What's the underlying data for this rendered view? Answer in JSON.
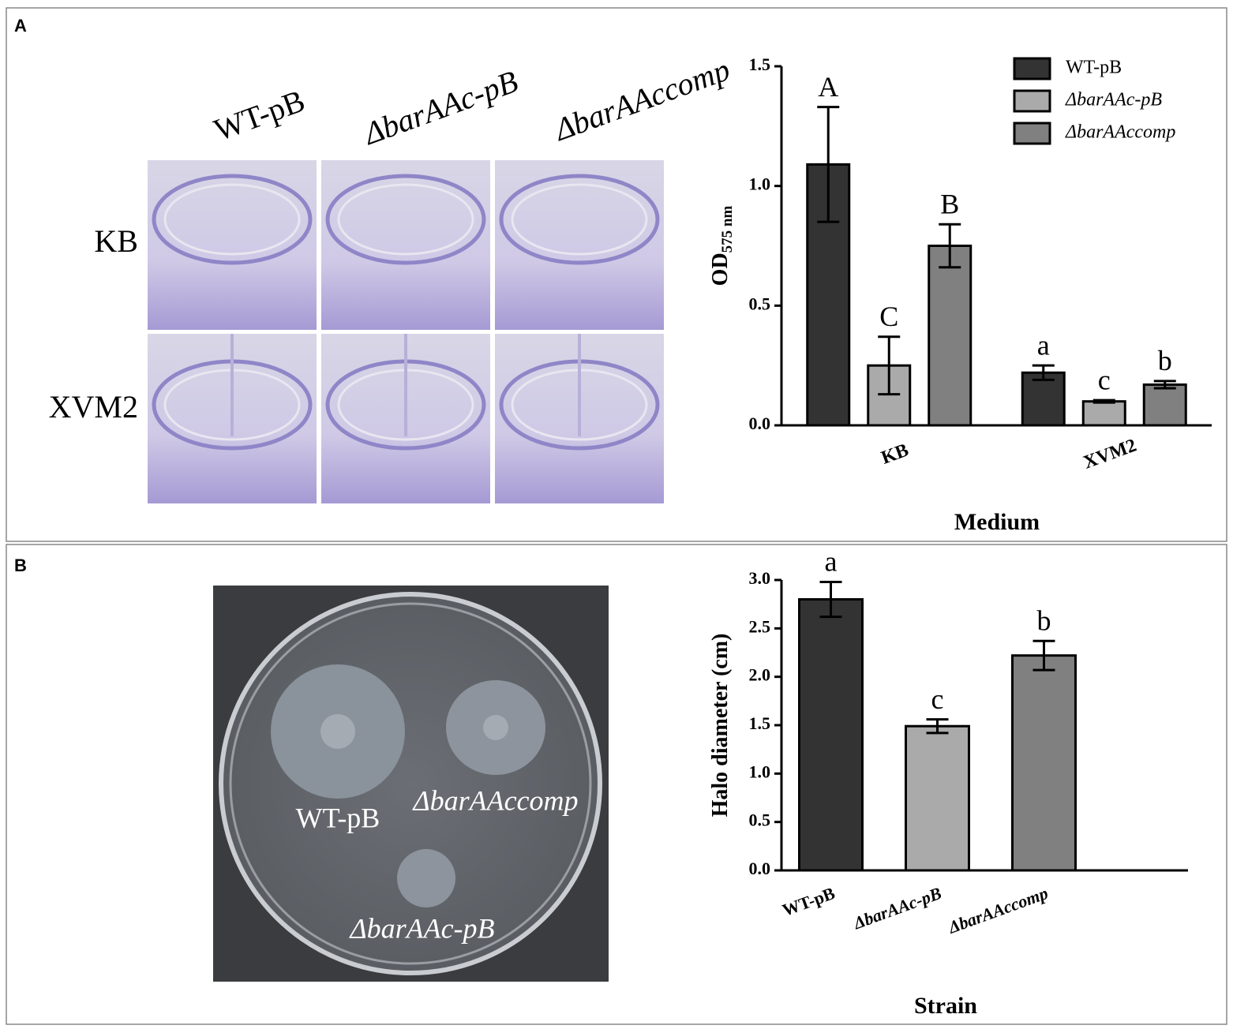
{
  "panels": [
    "A",
    "B"
  ],
  "photo_a": {
    "columns": [
      "WT-pB",
      "ΔbarAAc-pB",
      "ΔbarAAccomp"
    ],
    "rows": [
      "KB",
      "XVM2"
    ]
  },
  "photo_b": {
    "labels": [
      "WT-pB",
      "ΔbarAAccomp",
      "ΔbarAAc-pB"
    ]
  },
  "chart_data": [
    {
      "type": "bar",
      "y_label": "OD",
      "y_label_sub": "575 nm",
      "x_label": "Medium",
      "categories": [
        "KB",
        "XVM2"
      ],
      "ylim": [
        0,
        1.5
      ],
      "yticks": [
        {
          "value": 0,
          "label": "0.0"
        },
        {
          "value": 0.5,
          "label": "0.5"
        },
        {
          "value": 1,
          "label": "1.0"
        },
        {
          "value": 1.5,
          "label": "1.5"
        }
      ],
      "legend": "top-right",
      "series": [
        {
          "name": "WT-pB",
          "color": "#333333",
          "values": [
            1.09,
            0.22
          ],
          "errors": [
            0.24,
            0.03
          ],
          "letters": [
            "A",
            "a"
          ]
        },
        {
          "name": "ΔbarAAc-pB",
          "color": "#aaaaaa",
          "values": [
            0.25,
            0.1
          ],
          "errors": [
            0.12,
            0.005
          ],
          "letters": [
            "C",
            "c"
          ]
        },
        {
          "name": "ΔbarAAccomp",
          "color": "#808080",
          "values": [
            0.75,
            0.17
          ],
          "errors": [
            0.09,
            0.015
          ],
          "letters": [
            "B",
            "b"
          ]
        }
      ]
    },
    {
      "type": "bar",
      "y_label": "Halo diameter (cm)",
      "x_label": "Strain",
      "categories": [
        "WT-pB",
        "ΔbarAAc-pB",
        "ΔbarAAccomp"
      ],
      "ylim": [
        0,
        3
      ],
      "yticks": [
        {
          "value": 0,
          "label": "0.0"
        },
        {
          "value": 0.5,
          "label": "0.5"
        },
        {
          "value": 1,
          "label": "1.0"
        },
        {
          "value": 1.5,
          "label": "1.5"
        },
        {
          "value": 2,
          "label": "2.0"
        },
        {
          "value": 2.5,
          "label": "2.5"
        },
        {
          "value": 3,
          "label": "3.0"
        }
      ],
      "values": [
        2.8,
        1.49,
        2.22
      ],
      "errors": [
        0.18,
        0.07,
        0.15
      ],
      "letters": [
        "a",
        "c",
        "b"
      ],
      "colors": [
        "#333333",
        "#aaaaaa",
        "#808080"
      ]
    }
  ]
}
